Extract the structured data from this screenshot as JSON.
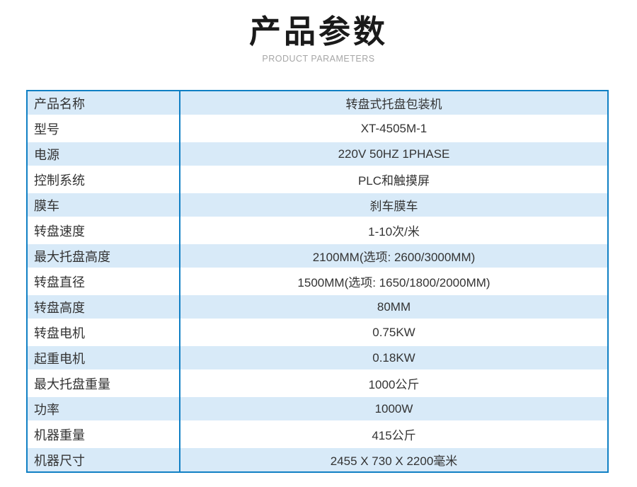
{
  "header": {
    "title": "产品参数",
    "subtitle": "PRODUCT PARAMETERS"
  },
  "colors": {
    "border_blue": "#1080c4",
    "row_alt_blue": "#d8eaf8",
    "title_color": "#1a1a1a",
    "subtitle_gray": "#a6a6a6",
    "text_color": "#333333"
  },
  "table": {
    "rows": [
      {
        "label": "产品名称",
        "value": "转盘式托盘包装机"
      },
      {
        "label": "型号",
        "value": "XT-4505M-1"
      },
      {
        "label": "电源",
        "value": "220V 50HZ 1PHASE"
      },
      {
        "label": "控制系统",
        "value": "PLC和触摸屏"
      },
      {
        "label": "膜车",
        "value": "刹车膜车"
      },
      {
        "label": "转盘速度",
        "value": "1-10次/米"
      },
      {
        "label": "最大托盘高度",
        "value": "2100MM(选项: 2600/3000MM)"
      },
      {
        "label": "转盘直径",
        "value": "1500MM(选项: 1650/1800/2000MM)"
      },
      {
        "label": "转盘高度",
        "value": "80MM"
      },
      {
        "label": "转盘电机",
        "value": "0.75KW"
      },
      {
        "label": "起重电机",
        "value": "0.18KW"
      },
      {
        "label": "最大托盘重量",
        "value": "1000公斤"
      },
      {
        "label": "功率",
        "value": "1000W"
      },
      {
        "label": "机器重量",
        "value": "415公斤"
      },
      {
        "label": "机器尺寸",
        "value": "2455 X 730 X 2200毫米"
      }
    ]
  }
}
